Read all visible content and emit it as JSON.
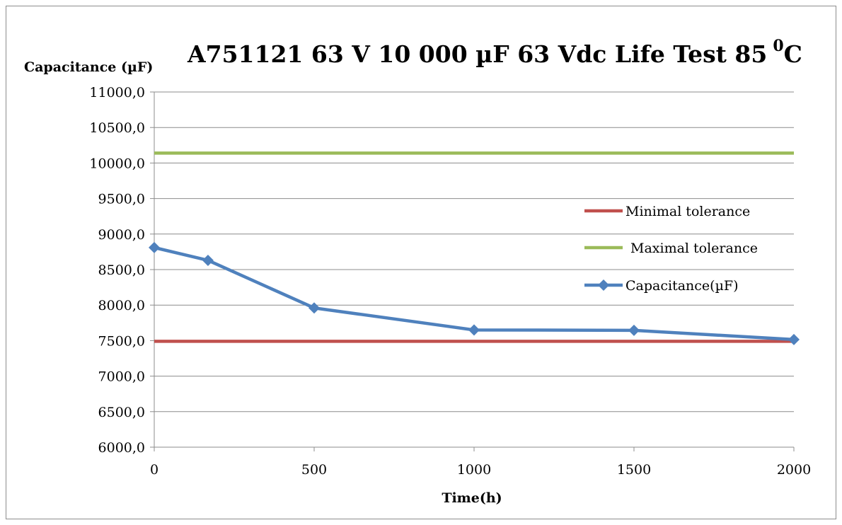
{
  "chart_data": {
    "type": "line",
    "title": "A751121 63 V 10 000 µF 63 Vdc Life Test 85",
    "title_superscript": "0",
    "title_suffix": "C",
    "ylabel": "Capacitance (µF)",
    "xlabel": "Time(h)",
    "xlim": [
      0,
      2000
    ],
    "ylim": [
      6000,
      11000
    ],
    "x_ticks": [
      "0",
      "500",
      "1000",
      "1500",
      "2000"
    ],
    "x_tick_values": [
      0,
      500,
      1000,
      1500,
      2000
    ],
    "y_ticks": [
      "6000,0",
      "6500,0",
      "7000,0",
      "7500,0",
      "8000,0",
      "8500,0",
      "9000,0",
      "9500,0",
      "10000,0",
      "10500,0",
      "11000,0"
    ],
    "y_tick_values": [
      6000,
      6500,
      7000,
      7500,
      8000,
      8500,
      9000,
      9500,
      10000,
      10500,
      11000
    ],
    "grid": "horizontal",
    "legend_position": "right",
    "series": [
      {
        "name": "Minimal tolerance",
        "color": "#c0504d",
        "marker": "none",
        "x": [
          0,
          2000
        ],
        "y": [
          7490,
          7490
        ]
      },
      {
        "name": "Maximal tolerance",
        "color": "#9bbb59",
        "marker": "none",
        "x": [
          0,
          2000
        ],
        "y": [
          10140,
          10140
        ]
      },
      {
        "name": "Capacitance(µF)",
        "color": "#4f81bd",
        "marker": "diamond",
        "x": [
          0,
          168,
          500,
          1000,
          1500,
          2000
        ],
        "y": [
          8810,
          8630,
          7960,
          7650,
          7645,
          7515
        ]
      }
    ]
  }
}
